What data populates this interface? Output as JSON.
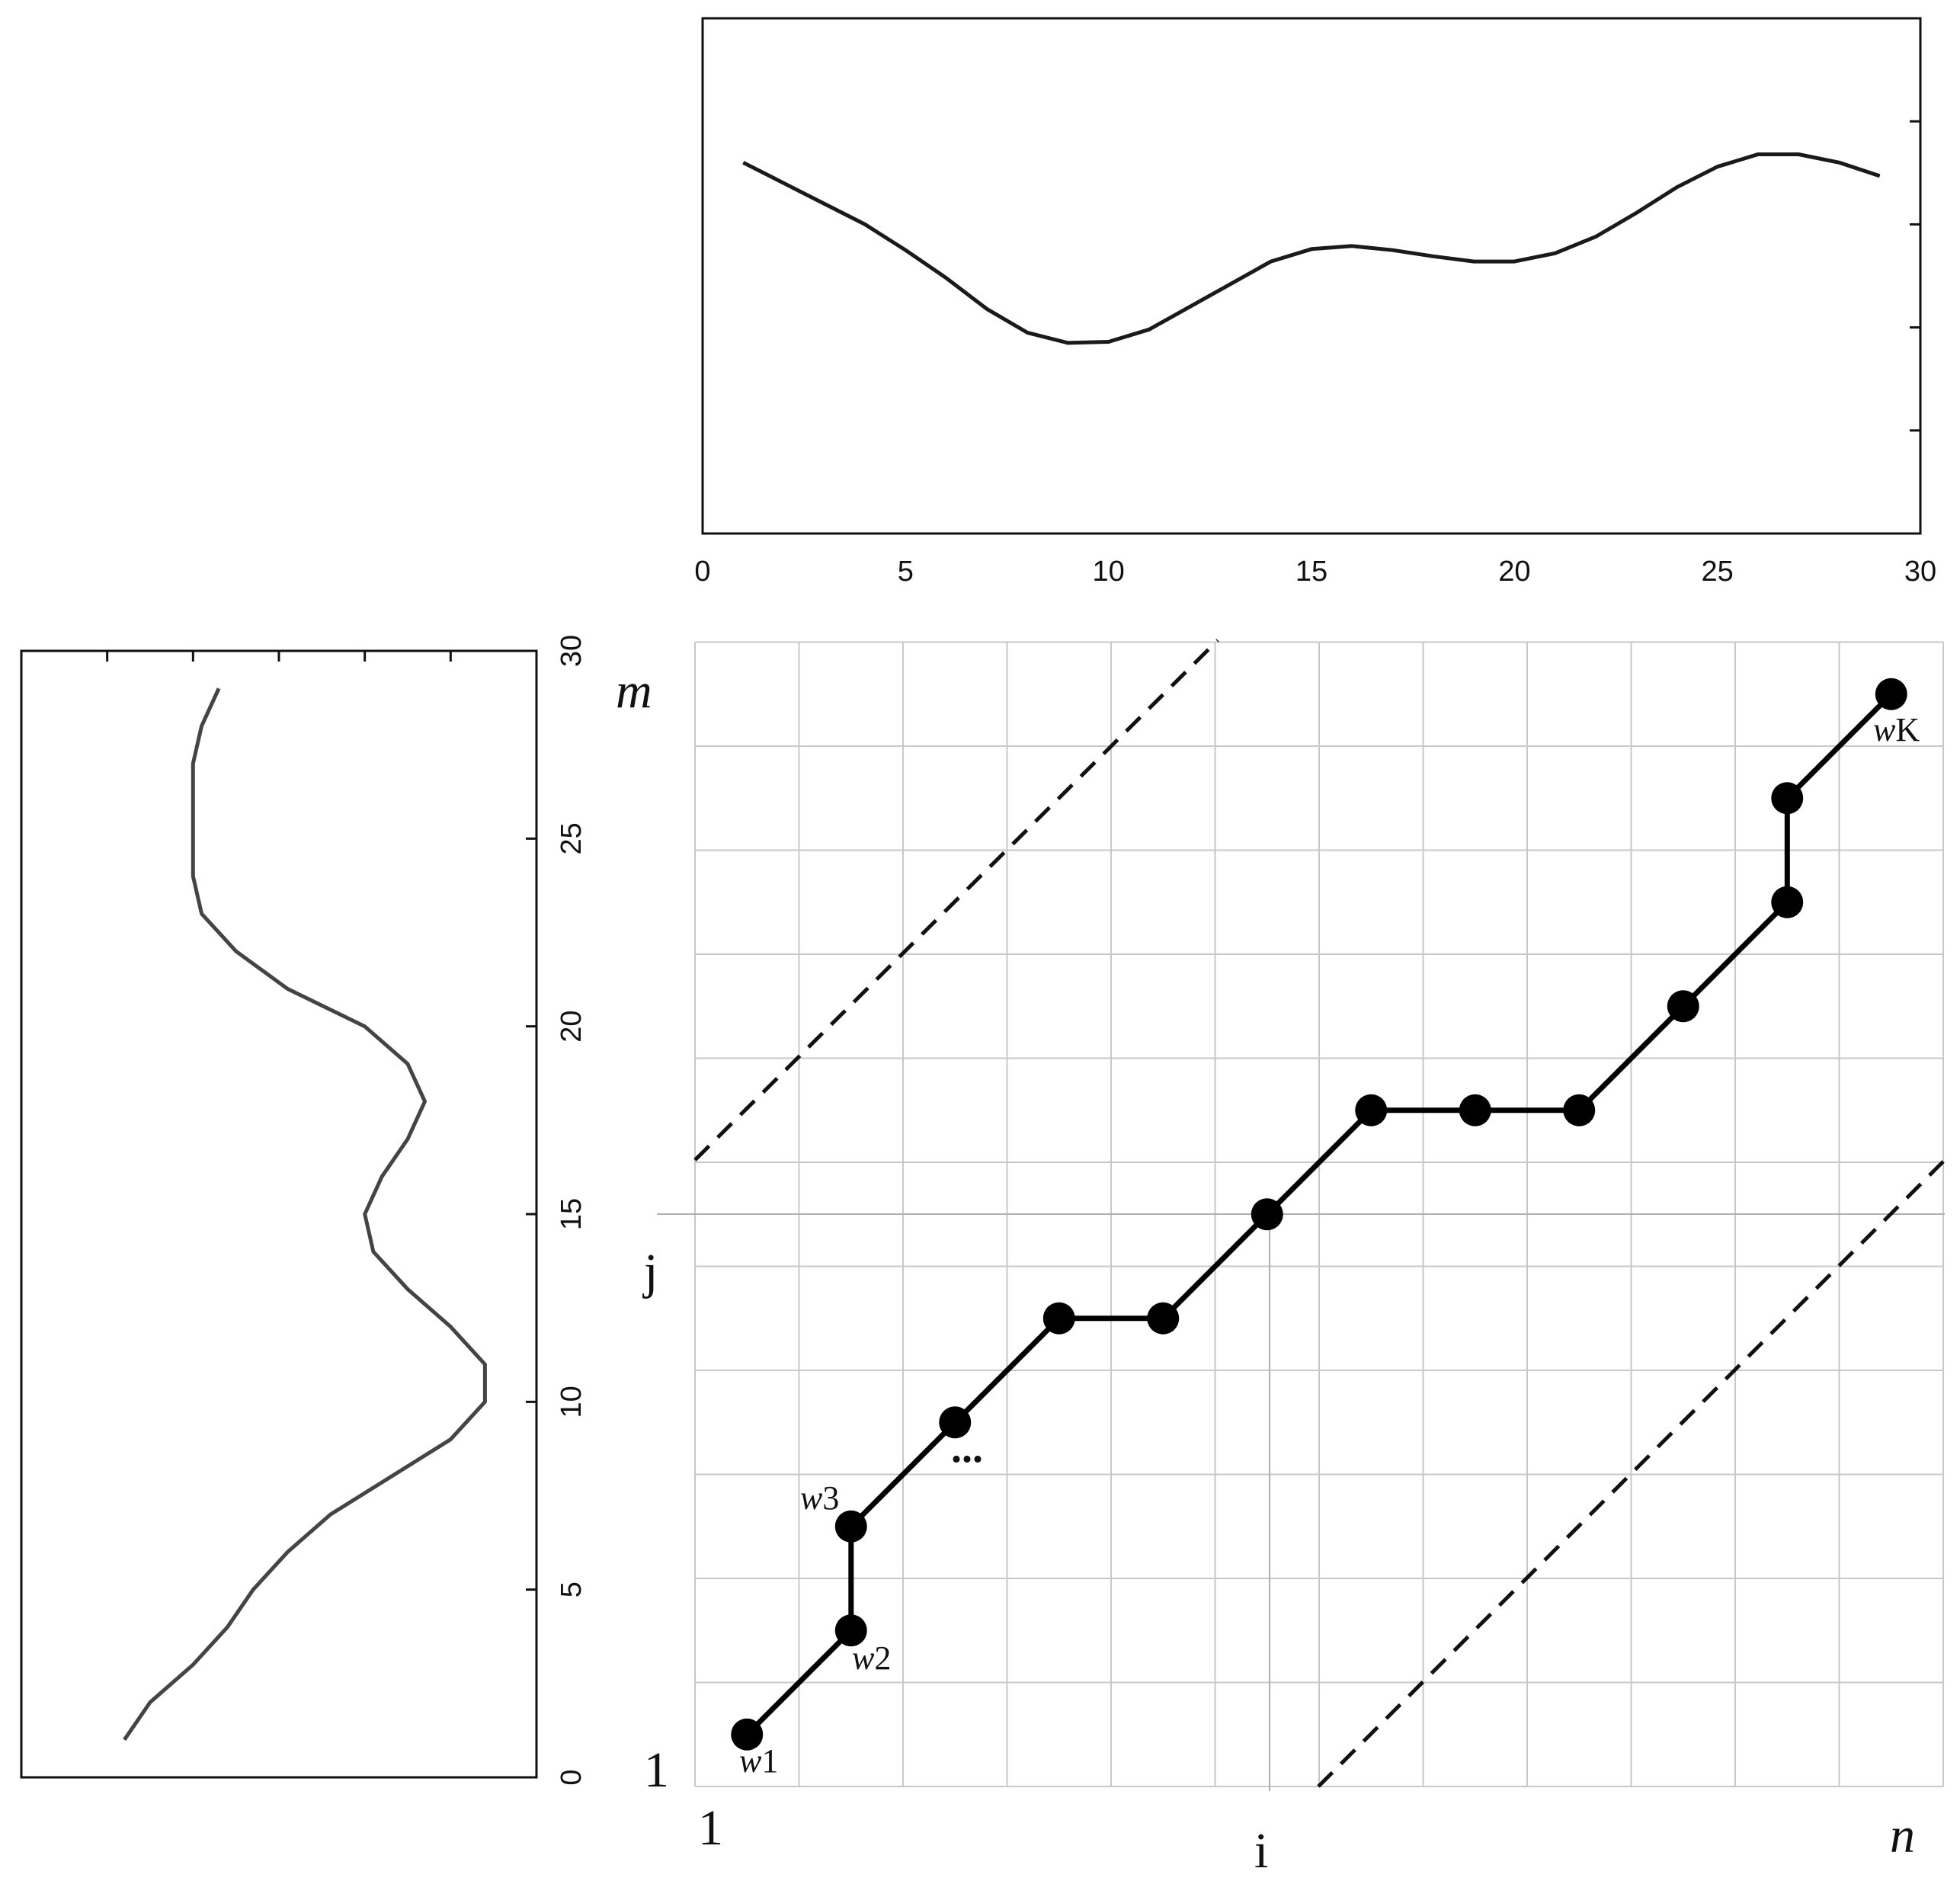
{
  "chart_data": [
    {
      "type": "line",
      "position": "top",
      "x": [
        1,
        2,
        3,
        4,
        5,
        6,
        7,
        8,
        9,
        10,
        11,
        12,
        13,
        14,
        15,
        16,
        17,
        18,
        19,
        20,
        21,
        22,
        23,
        24,
        25,
        26,
        27,
        28,
        29
      ],
      "y": [
        4.6,
        4.4,
        4.2,
        4.0,
        3.75,
        3.48,
        3.18,
        2.95,
        2.85,
        2.86,
        2.98,
        3.2,
        3.42,
        3.64,
        3.76,
        3.79,
        3.75,
        3.69,
        3.64,
        3.64,
        3.72,
        3.88,
        4.11,
        4.36,
        4.56,
        4.68,
        4.68,
        4.6,
        4.47
      ],
      "xlim": [
        0,
        30
      ],
      "ylim": [
        1,
        6
      ],
      "xticks": [
        "0",
        "5",
        "10",
        "15",
        "20",
        "25",
        "30"
      ],
      "grid": false
    },
    {
      "type": "line",
      "position": "left",
      "orientation": "rotated",
      "m": [
        1,
        2,
        3,
        4,
        5,
        6,
        7,
        8,
        9,
        10,
        11,
        12,
        13,
        14,
        15,
        16,
        17,
        18,
        19,
        20,
        21,
        22,
        23,
        24,
        25,
        26,
        27,
        28,
        29
      ],
      "value": [
        1.2,
        1.5,
        2.0,
        2.4,
        2.7,
        3.1,
        3.6,
        4.3,
        5.0,
        5.4,
        5.4,
        5.0,
        4.5,
        4.1,
        4.0,
        4.2,
        4.5,
        4.7,
        4.5,
        4.0,
        3.1,
        2.5,
        2.1,
        2.0,
        2.0,
        2.0,
        2.0,
        2.1,
        2.3
      ],
      "mlim": [
        0,
        30
      ],
      "valuelim": [
        0,
        6
      ],
      "mticks": [
        "0",
        "5",
        "10",
        "15",
        "20",
        "25",
        "30"
      ],
      "grid": false
    },
    {
      "type": "scatter",
      "position": "main",
      "description_labels": {
        "x_start": "1",
        "x_mid": "i",
        "x_end": "n",
        "y_start": "1",
        "y_mid": "j",
        "y_end": "m"
      },
      "path": [
        [
          1,
          1
        ],
        [
          2,
          2
        ],
        [
          2,
          3
        ],
        [
          3,
          4
        ],
        [
          4,
          5
        ],
        [
          5,
          5
        ],
        [
          6,
          6
        ],
        [
          7,
          7
        ],
        [
          8,
          7
        ],
        [
          9,
          7
        ],
        [
          10,
          8
        ],
        [
          11,
          9
        ],
        [
          11,
          10
        ],
        [
          12,
          11
        ]
      ],
      "point_labels": [
        {
          "index": 0,
          "text": "w1"
        },
        {
          "index": 1,
          "text": "w2"
        },
        {
          "index": 2,
          "text": "w3"
        },
        {
          "index": 13,
          "text": "wK"
        }
      ],
      "ellipsis": "...",
      "grid_cells": [
        12,
        11
      ],
      "band_lines": "dashed diagonal",
      "i_value": 6,
      "j_value": 5.5
    }
  ]
}
